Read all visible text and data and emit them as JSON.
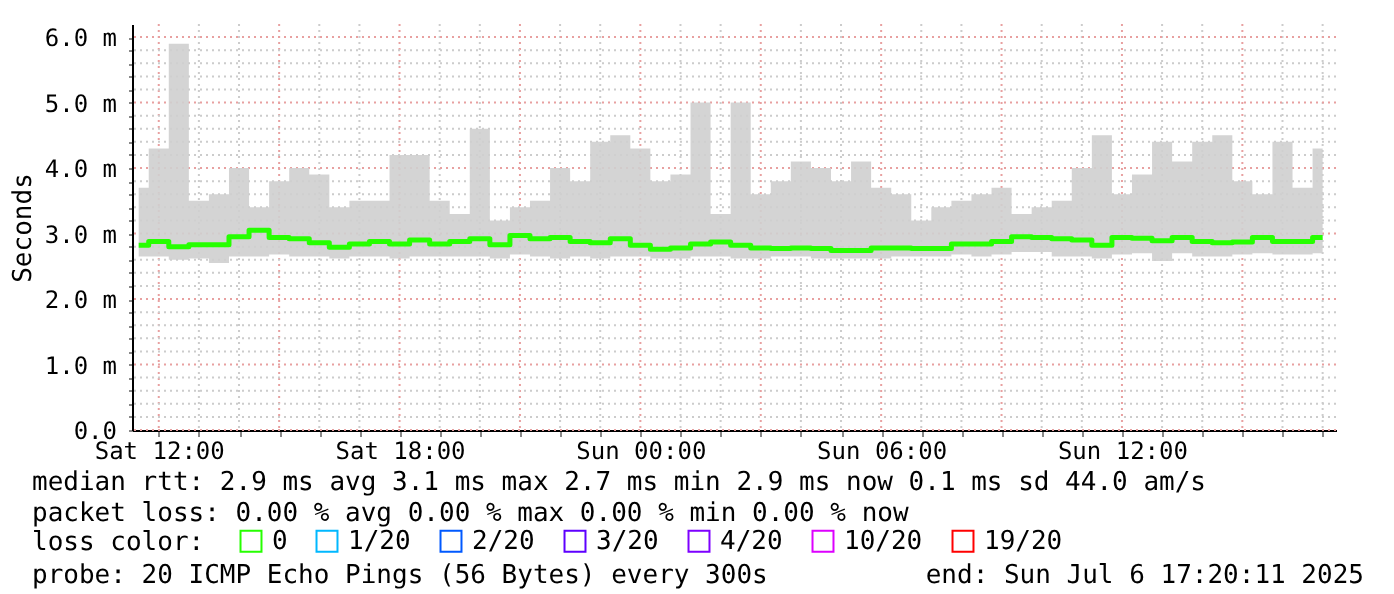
{
  "chart_data": {
    "type": "line",
    "ylabel": "Seconds",
    "x": [
      "2025-07-05T11:30",
      "2025-07-05T12:00",
      "2025-07-05T12:30",
      "2025-07-05T13:00",
      "2025-07-05T13:30",
      "2025-07-05T14:00",
      "2025-07-05T14:30",
      "2025-07-05T15:00",
      "2025-07-05T15:30",
      "2025-07-05T16:00",
      "2025-07-05T16:30",
      "2025-07-05T17:00",
      "2025-07-05T17:30",
      "2025-07-05T18:00",
      "2025-07-05T18:30",
      "2025-07-05T19:00",
      "2025-07-05T19:30",
      "2025-07-05T20:00",
      "2025-07-05T20:30",
      "2025-07-05T21:00",
      "2025-07-05T21:30",
      "2025-07-05T22:00",
      "2025-07-05T22:30",
      "2025-07-05T23:00",
      "2025-07-05T23:30",
      "2025-07-06T00:00",
      "2025-07-06T00:30",
      "2025-07-06T01:00",
      "2025-07-06T01:30",
      "2025-07-06T02:00",
      "2025-07-06T02:30",
      "2025-07-06T03:00",
      "2025-07-06T03:30",
      "2025-07-06T04:00",
      "2025-07-06T04:30",
      "2025-07-06T05:00",
      "2025-07-06T05:30",
      "2025-07-06T06:00",
      "2025-07-06T06:30",
      "2025-07-06T07:00",
      "2025-07-06T07:30",
      "2025-07-06T08:00",
      "2025-07-06T08:30",
      "2025-07-06T09:00",
      "2025-07-06T09:30",
      "2025-07-06T10:00",
      "2025-07-06T10:30",
      "2025-07-06T11:00",
      "2025-07-06T11:30",
      "2025-07-06T12:00",
      "2025-07-06T12:30",
      "2025-07-06T13:00",
      "2025-07-06T13:30",
      "2025-07-06T14:00",
      "2025-07-06T14:30",
      "2025-07-06T15:00",
      "2025-07-06T15:30",
      "2025-07-06T16:00",
      "2025-07-06T16:30",
      "2025-07-06T17:00"
    ],
    "series": [
      {
        "name": "0",
        "color": "#26ff00",
        "values": [
          2.82,
          2.88,
          2.8,
          2.83,
          2.83,
          2.95,
          3.05,
          2.94,
          2.92,
          2.86,
          2.79,
          2.84,
          2.88,
          2.84,
          2.9,
          2.84,
          2.88,
          2.92,
          2.83,
          2.97,
          2.92,
          2.94,
          2.88,
          2.86,
          2.92,
          2.82,
          2.76,
          2.78,
          2.84,
          2.87,
          2.82,
          2.78,
          2.77,
          2.78,
          2.77,
          2.74,
          2.74,
          2.78,
          2.78,
          2.77,
          2.77,
          2.84,
          2.84,
          2.88,
          2.95,
          2.94,
          2.92,
          2.9,
          2.82,
          2.94,
          2.93,
          2.89,
          2.94,
          2.88,
          2.86,
          2.87,
          2.94,
          2.88,
          2.88,
          2.94
        ],
        "lower": [
          2.65,
          2.65,
          2.6,
          2.62,
          2.55,
          2.65,
          2.65,
          2.68,
          2.65,
          2.65,
          2.62,
          2.65,
          2.65,
          2.62,
          2.65,
          2.65,
          2.65,
          2.65,
          2.62,
          2.68,
          2.65,
          2.62,
          2.65,
          2.62,
          2.65,
          2.65,
          2.62,
          2.62,
          2.65,
          2.65,
          2.62,
          2.62,
          2.65,
          2.65,
          2.62,
          2.62,
          2.62,
          2.62,
          2.65,
          2.65,
          2.65,
          2.68,
          2.65,
          2.68,
          2.72,
          2.72,
          2.65,
          2.65,
          2.62,
          2.68,
          2.7,
          2.58,
          2.7,
          2.65,
          2.65,
          2.68,
          2.7,
          2.68,
          2.68,
          2.7
        ],
        "upper": [
          3.7,
          4.3,
          5.9,
          3.5,
          3.6,
          4.0,
          3.4,
          3.8,
          4.0,
          3.9,
          3.4,
          3.5,
          3.5,
          4.2,
          4.2,
          3.5,
          3.3,
          4.6,
          3.2,
          3.4,
          3.5,
          4.0,
          3.8,
          4.4,
          4.5,
          4.3,
          3.8,
          3.9,
          5.0,
          3.3,
          5.0,
          3.6,
          3.8,
          4.1,
          4.0,
          3.8,
          4.1,
          3.7,
          3.6,
          3.2,
          3.4,
          3.5,
          3.6,
          3.7,
          3.3,
          3.4,
          3.5,
          4.0,
          4.5,
          3.6,
          3.9,
          4.4,
          4.1,
          4.4,
          4.5,
          3.8,
          3.6,
          4.4,
          3.7,
          4.3
        ]
      },
      {
        "name": "1/20",
        "color": "#00b8ff",
        "values": [
          null,
          null,
          null,
          null,
          null,
          null,
          null,
          null,
          null,
          null,
          null,
          null,
          null,
          null,
          null,
          null,
          null,
          null,
          null,
          null,
          null,
          null,
          null,
          null,
          null,
          null,
          null,
          null,
          null,
          null,
          null,
          null,
          null,
          null,
          null,
          null,
          null,
          null,
          null,
          null,
          null,
          null,
          null,
          null,
          null,
          null,
          null,
          null,
          null,
          null,
          null,
          null,
          null,
          null,
          null,
          null,
          null,
          null,
          null,
          null
        ]
      },
      {
        "name": "2/20",
        "color": "#0059ff",
        "values": [
          null,
          null,
          null,
          null,
          null,
          null,
          null,
          null,
          null,
          null,
          null,
          null,
          null,
          null,
          null,
          null,
          null,
          null,
          null,
          null,
          null,
          null,
          null,
          null,
          null,
          null,
          null,
          null,
          null,
          null,
          null,
          null,
          null,
          null,
          null,
          null,
          null,
          null,
          null,
          null,
          null,
          null,
          null,
          null,
          null,
          null,
          null,
          null,
          null,
          null,
          null,
          null,
          null,
          null,
          null,
          null,
          null,
          null,
          null,
          null
        ]
      },
      {
        "name": "3/20",
        "color": "#5e00ff",
        "values": [
          null,
          null,
          null,
          null,
          null,
          null,
          null,
          null,
          null,
          null,
          null,
          null,
          null,
          null,
          null,
          null,
          null,
          null,
          null,
          null,
          null,
          null,
          null,
          null,
          null,
          null,
          null,
          null,
          null,
          null,
          null,
          null,
          null,
          null,
          null,
          null,
          null,
          null,
          null,
          null,
          null,
          null,
          null,
          null,
          null,
          null,
          null,
          null,
          null,
          null,
          null,
          null,
          null,
          null,
          null,
          null,
          null,
          null,
          null,
          null
        ]
      },
      {
        "name": "4/20",
        "color": "#7e00ff",
        "values": [
          null,
          null,
          null,
          null,
          null,
          null,
          null,
          null,
          null,
          null,
          null,
          null,
          null,
          null,
          null,
          null,
          null,
          null,
          null,
          null,
          null,
          null,
          null,
          null,
          null,
          null,
          null,
          null,
          null,
          null,
          null,
          null,
          null,
          null,
          null,
          null,
          null,
          null,
          null,
          null,
          null,
          null,
          null,
          null,
          null,
          null,
          null,
          null,
          null,
          null,
          null,
          null,
          null,
          null,
          null,
          null,
          null,
          null,
          null,
          null
        ]
      },
      {
        "name": "10/20",
        "color": "#dd00ff",
        "values": [
          null,
          null,
          null,
          null,
          null,
          null,
          null,
          null,
          null,
          null,
          null,
          null,
          null,
          null,
          null,
          null,
          null,
          null,
          null,
          null,
          null,
          null,
          null,
          null,
          null,
          null,
          null,
          null,
          null,
          null,
          null,
          null,
          null,
          null,
          null,
          null,
          null,
          null,
          null,
          null,
          null,
          null,
          null,
          null,
          null,
          null,
          null,
          null,
          null,
          null,
          null,
          null,
          null,
          null,
          null,
          null,
          null,
          null,
          null,
          null
        ]
      },
      {
        "name": "19/20",
        "color": "#ff0000",
        "values": [
          null,
          null,
          null,
          null,
          null,
          null,
          null,
          null,
          null,
          null,
          null,
          null,
          null,
          null,
          null,
          null,
          null,
          null,
          null,
          null,
          null,
          null,
          null,
          null,
          null,
          null,
          null,
          null,
          null,
          null,
          null,
          null,
          null,
          null,
          null,
          null,
          null,
          null,
          null,
          null,
          null,
          null,
          null,
          null,
          null,
          null,
          null,
          null,
          null,
          null,
          null,
          null,
          null,
          null,
          null,
          null,
          null,
          null,
          null,
          null
        ]
      }
    ],
    "legend_title": "loss color:",
    "legend": "bottom",
    "xlim": [
      "2025-07-05T11:20",
      "2025-07-06T17:20"
    ],
    "xticks": [
      {
        "value": "2025-07-05T12:00",
        "label": "Sat 12:00"
      },
      {
        "value": "2025-07-05T13:00",
        "label": null
      },
      {
        "value": "2025-07-05T14:00",
        "label": null
      },
      {
        "value": "2025-07-05T15:00",
        "label": null
      },
      {
        "value": "2025-07-05T16:00",
        "label": null
      },
      {
        "value": "2025-07-05T17:00",
        "label": null
      },
      {
        "value": "2025-07-05T18:00",
        "label": "Sat 18:00"
      },
      {
        "value": "2025-07-05T19:00",
        "label": null
      },
      {
        "value": "2025-07-05T20:00",
        "label": null
      },
      {
        "value": "2025-07-05T21:00",
        "label": null
      },
      {
        "value": "2025-07-05T22:00",
        "label": null
      },
      {
        "value": "2025-07-05T23:00",
        "label": null
      },
      {
        "value": "2025-07-06T00:00",
        "label": "Sun 00:00"
      },
      {
        "value": "2025-07-06T01:00",
        "label": null
      },
      {
        "value": "2025-07-06T02:00",
        "label": null
      },
      {
        "value": "2025-07-06T03:00",
        "label": null
      },
      {
        "value": "2025-07-06T04:00",
        "label": null
      },
      {
        "value": "2025-07-06T05:00",
        "label": null
      },
      {
        "value": "2025-07-06T06:00",
        "label": "Sun 06:00"
      },
      {
        "value": "2025-07-06T07:00",
        "label": null
      },
      {
        "value": "2025-07-06T08:00",
        "label": null
      },
      {
        "value": "2025-07-06T09:00",
        "label": null
      },
      {
        "value": "2025-07-06T10:00",
        "label": null
      },
      {
        "value": "2025-07-06T11:00",
        "label": null
      },
      {
        "value": "2025-07-06T12:00",
        "label": "Sun 12:00"
      },
      {
        "value": "2025-07-06T13:00",
        "label": null
      },
      {
        "value": "2025-07-06T14:00",
        "label": null
      },
      {
        "value": "2025-07-06T15:00",
        "label": null
      },
      {
        "value": "2025-07-06T16:00",
        "label": null
      },
      {
        "value": "2025-07-06T17:00",
        "label": null
      }
    ],
    "ylim": [
      0,
      6.2
    ],
    "yticks": [
      {
        "value": 0,
        "label": "0.0"
      },
      {
        "value": 0.2,
        "label": null
      },
      {
        "value": 0.4,
        "label": null
      },
      {
        "value": 0.6,
        "label": null
      },
      {
        "value": 0.8,
        "label": null
      },
      {
        "value": 1,
        "label": "1.0 m"
      },
      {
        "value": 1.2,
        "label": null
      },
      {
        "value": 1.4,
        "label": null
      },
      {
        "value": 1.6,
        "label": null
      },
      {
        "value": 1.8,
        "label": null
      },
      {
        "value": 2,
        "label": "2.0 m"
      },
      {
        "value": 2.2,
        "label": null
      },
      {
        "value": 2.4,
        "label": null
      },
      {
        "value": 2.6,
        "label": null
      },
      {
        "value": 2.8,
        "label": null
      },
      {
        "value": 3,
        "label": "3.0 m"
      },
      {
        "value": 3.2,
        "label": null
      },
      {
        "value": 3.4,
        "label": null
      },
      {
        "value": 3.6,
        "label": null
      },
      {
        "value": 3.8,
        "label": null
      },
      {
        "value": 4,
        "label": "4.0 m"
      },
      {
        "value": 4.2,
        "label": null
      },
      {
        "value": 4.4,
        "label": null
      },
      {
        "value": 4.6,
        "label": null
      },
      {
        "value": 4.8,
        "label": null
      },
      {
        "value": 5,
        "label": "5.0 m"
      },
      {
        "value": 5.2,
        "label": null
      },
      {
        "value": 5.4,
        "label": null
      },
      {
        "value": 5.6,
        "label": null
      },
      {
        "value": 5.8,
        "label": null
      },
      {
        "value": 6,
        "label": "6.0 m"
      }
    ],
    "grid": true,
    "line_style": "solid",
    "annotations": [
      "median rtt:  2.9 ms avg  3.1 ms max  2.7 ms min  2.9 ms now  0.1 ms sd  44.0   am/s",
      "packet loss: 0.00 % avg  0.00 % max  0.00 % min  0.00 % now",
      "probe:       20 ICMP Echo Pings (56 Bytes) every 300s",
      "end: Sun Jul  6 17:20:11 2025"
    ]
  }
}
